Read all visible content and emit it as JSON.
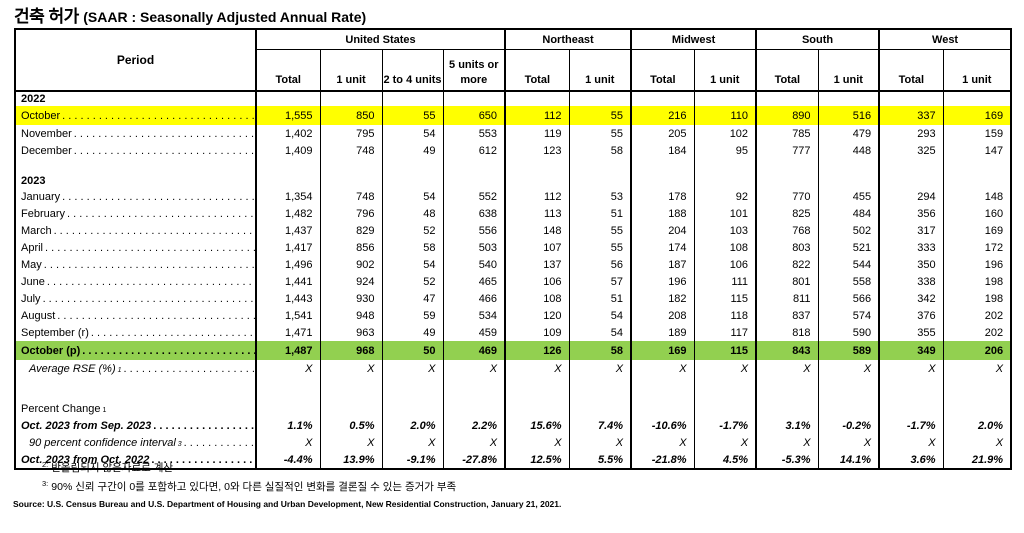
{
  "title": {
    "korean": "건축 허가",
    "english": "(SAAR : Seasonally Adjusted Annual Rate)"
  },
  "colors": {
    "highlight_yellow": "#FFFF00",
    "highlight_green": "#92D050",
    "border": "#000000"
  },
  "table": {
    "period_header": "Period",
    "groups": [
      {
        "label": "United States",
        "columns": [
          "Total",
          "1 unit",
          "2 to 4 units",
          "5 units or more"
        ]
      },
      {
        "label": "Northeast",
        "columns": [
          "Total",
          "1 unit"
        ]
      },
      {
        "label": "Midwest",
        "columns": [
          "Total",
          "1 unit"
        ]
      },
      {
        "label": "South",
        "columns": [
          "Total",
          "1 unit"
        ]
      },
      {
        "label": "West",
        "columns": [
          "Total",
          "1 unit"
        ]
      }
    ],
    "rows": [
      {
        "type": "year",
        "label": "2022"
      },
      {
        "type": "data",
        "label": "October",
        "highlight": "yellow",
        "cls": "tall",
        "values": [
          "1,555",
          "850",
          "55",
          "650",
          "112",
          "55",
          "216",
          "110",
          "890",
          "516",
          "337",
          "169"
        ]
      },
      {
        "type": "data",
        "label": "November",
        "values": [
          "1,402",
          "795",
          "54",
          "553",
          "119",
          "55",
          "205",
          "102",
          "785",
          "479",
          "293",
          "159"
        ]
      },
      {
        "type": "data",
        "label": "December",
        "values": [
          "1,409",
          "748",
          "49",
          "612",
          "123",
          "58",
          "184",
          "95",
          "777",
          "448",
          "325",
          "147"
        ]
      },
      {
        "type": "spacer"
      },
      {
        "type": "year",
        "label": "2023"
      },
      {
        "type": "data",
        "label": "January",
        "values": [
          "1,354",
          "748",
          "54",
          "552",
          "112",
          "53",
          "178",
          "92",
          "770",
          "455",
          "294",
          "148"
        ]
      },
      {
        "type": "data",
        "label": "February",
        "values": [
          "1,482",
          "796",
          "48",
          "638",
          "113",
          "51",
          "188",
          "101",
          "825",
          "484",
          "356",
          "160"
        ]
      },
      {
        "type": "data",
        "label": "March",
        "values": [
          "1,437",
          "829",
          "52",
          "556",
          "148",
          "55",
          "204",
          "103",
          "768",
          "502",
          "317",
          "169"
        ]
      },
      {
        "type": "data",
        "label": "April",
        "values": [
          "1,417",
          "856",
          "58",
          "503",
          "107",
          "55",
          "174",
          "108",
          "803",
          "521",
          "333",
          "172"
        ]
      },
      {
        "type": "data",
        "label": "May",
        "values": [
          "1,496",
          "902",
          "54",
          "540",
          "137",
          "56",
          "187",
          "106",
          "822",
          "544",
          "350",
          "196"
        ]
      },
      {
        "type": "data",
        "label": "June",
        "values": [
          "1,441",
          "924",
          "52",
          "465",
          "106",
          "57",
          "196",
          "111",
          "801",
          "558",
          "338",
          "198"
        ]
      },
      {
        "type": "data",
        "label": "July",
        "values": [
          "1,443",
          "930",
          "47",
          "466",
          "108",
          "51",
          "182",
          "115",
          "811",
          "566",
          "342",
          "198"
        ]
      },
      {
        "type": "data",
        "label": "August",
        "values": [
          "1,541",
          "948",
          "59",
          "534",
          "120",
          "54",
          "208",
          "118",
          "837",
          "574",
          "376",
          "202"
        ]
      },
      {
        "type": "data",
        "label": "September (r)",
        "values": [
          "1,471",
          "963",
          "49",
          "459",
          "109",
          "54",
          "189",
          "117",
          "818",
          "590",
          "355",
          "202"
        ]
      },
      {
        "type": "data",
        "label": "October (p)",
        "highlight": "green",
        "cls": "tall",
        "values": [
          "1,487",
          "968",
          "50",
          "469",
          "126",
          "58",
          "169",
          "115",
          "843",
          "589",
          "349",
          "206"
        ]
      },
      {
        "type": "data",
        "label": "Average RSE (%)",
        "sup": "1",
        "style": "italic",
        "indent": true,
        "cls": "rse",
        "values": [
          "X",
          "X",
          "X",
          "X",
          "X",
          "X",
          "X",
          "X",
          "X",
          "X",
          "X",
          "X"
        ]
      },
      {
        "type": "spacer"
      },
      {
        "type": "section",
        "label": "Percent Change",
        "sup": "1"
      },
      {
        "type": "data",
        "label": "Oct. 2023 from Sep. 2023",
        "style": "bold-italic",
        "values": [
          "1.1%",
          "0.5%",
          "2.0%",
          "2.2%",
          "15.6%",
          "7.4%",
          "-10.6%",
          "-1.7%",
          "3.1%",
          "-0.2%",
          "-1.7%",
          "2.0%"
        ]
      },
      {
        "type": "data",
        "label": "90 percent confidence interval",
        "sup": "3",
        "style": "italic",
        "indent": true,
        "values": [
          "X",
          "X",
          "X",
          "X",
          "X",
          "X",
          "X",
          "X",
          "X",
          "X",
          "X",
          "X"
        ]
      },
      {
        "type": "data",
        "label": "Oct. 2023 from Oct. 2022",
        "style": "bold-italic",
        "values": [
          "-4.4%",
          "13.9%",
          "-9.1%",
          "-27.8%",
          "12.5%",
          "5.5%",
          "-21.8%",
          "4.5%",
          "-5.3%",
          "14.1%",
          "3.6%",
          "21.9%"
        ]
      }
    ]
  },
  "footnotes": [
    {
      "marker": "2:",
      "text": "반올림되지 않은자료로 계산"
    },
    {
      "marker": "3:",
      "text": "90% 신뢰 구간이 0를 포함하고 있다면, 0와 다른 실질적인 변화를 결론질 수 있는 증거가 부족"
    }
  ],
  "source": "Source: U.S. Census Bureau and U.S. Department of Housing and Urban Development, New Residential Construction, January 21, 2021."
}
